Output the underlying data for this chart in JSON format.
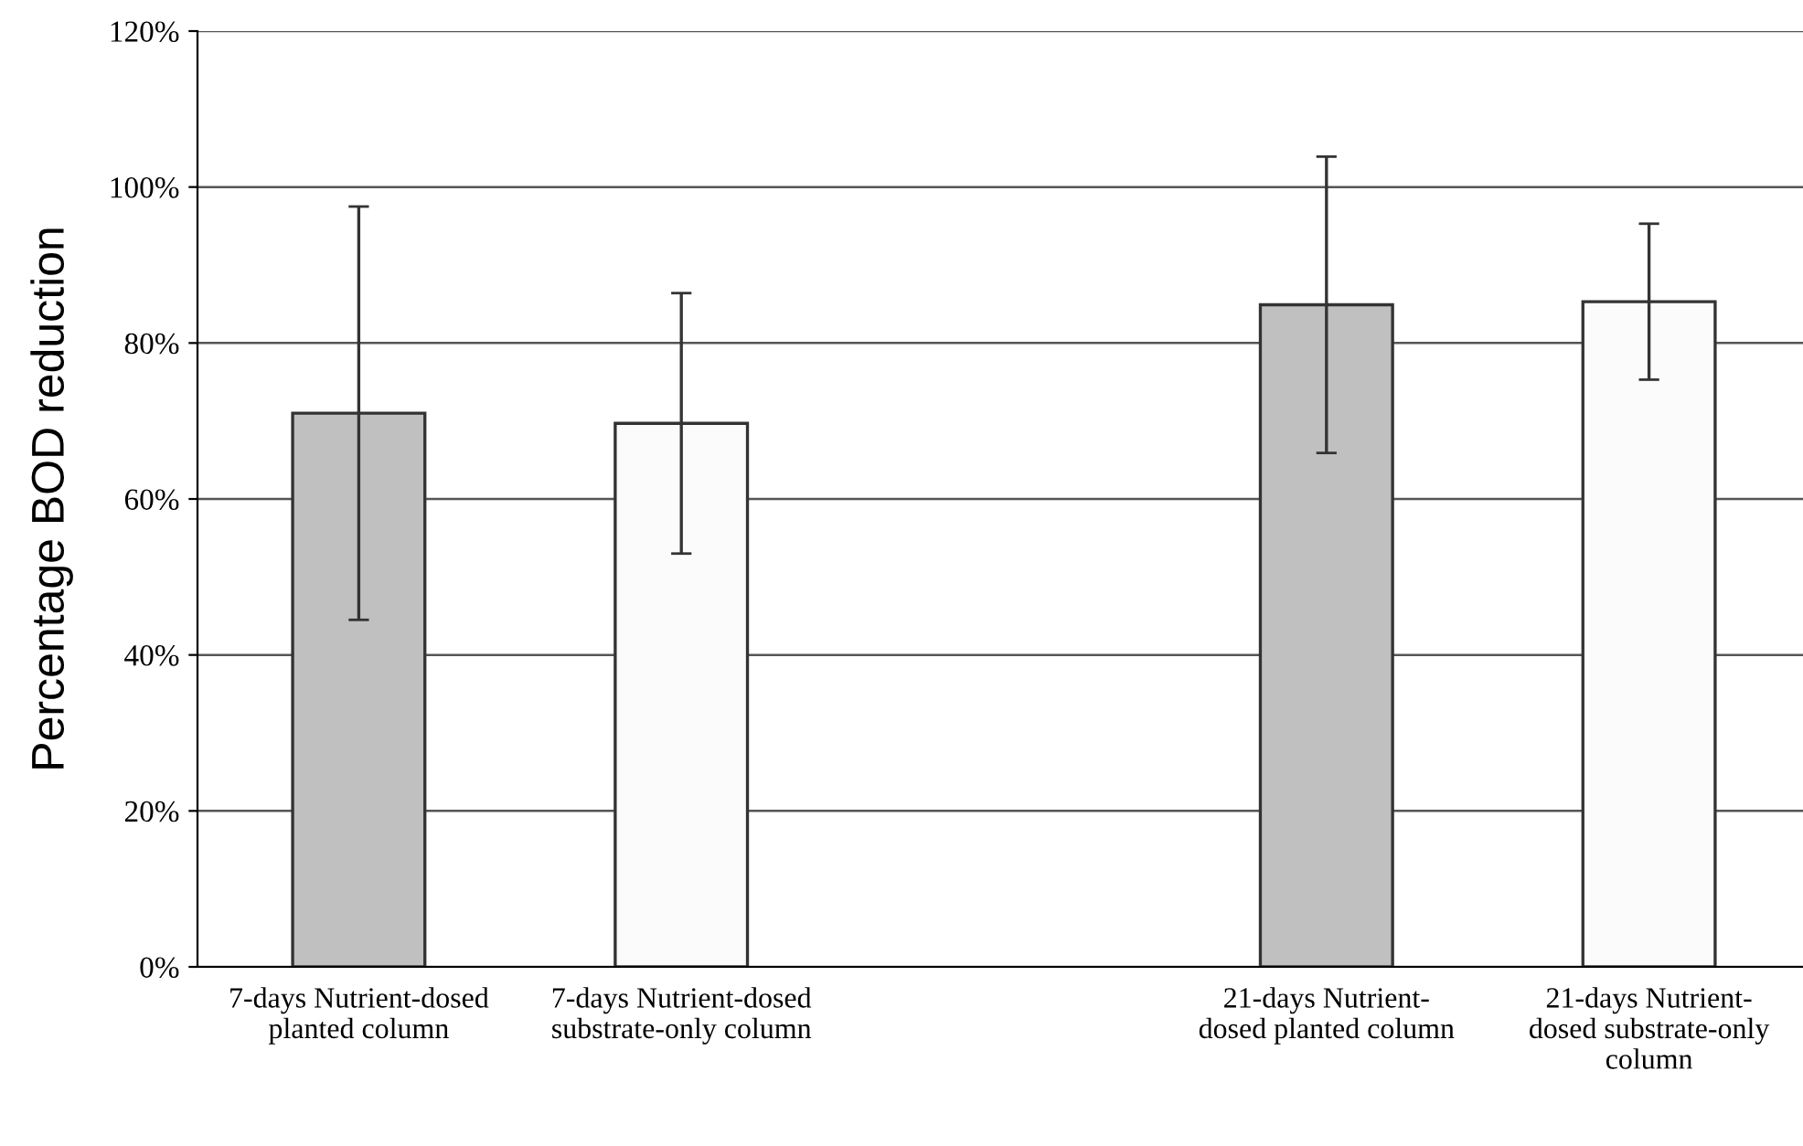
{
  "chart_data": {
    "type": "bar",
    "ylabel": "Percentage BOD reduction",
    "categories": [
      "7-days Nutrient-dosed\nplanted column",
      "7-days Nutrient-dosed\nsubstrate-only column",
      null,
      "21-days Nutrient-\ndosed planted column",
      "21-days Nutrient-\ndosed substrate-only\ncolumn"
    ],
    "values": [
      71,
      69.7,
      null,
      84.9,
      85.3
    ],
    "errors": [
      26.5,
      16.7,
      null,
      19,
      10
    ],
    "colors": [
      "#c0c0c0",
      "#fbfbfb",
      "#ffffff",
      "#c0c0c0",
      "#fbfbfb"
    ],
    "ylim": [
      0,
      120
    ],
    "yticks": [
      {
        "value": 0,
        "label": "0%"
      },
      {
        "value": 20,
        "label": "20%"
      },
      {
        "value": 40,
        "label": "40%"
      },
      {
        "value": 60,
        "label": "60%"
      },
      {
        "value": 80,
        "label": "80%"
      },
      {
        "value": 100,
        "label": "100%"
      },
      {
        "value": 120,
        "label": "120%"
      }
    ],
    "grid": "y",
    "legend": false
  }
}
